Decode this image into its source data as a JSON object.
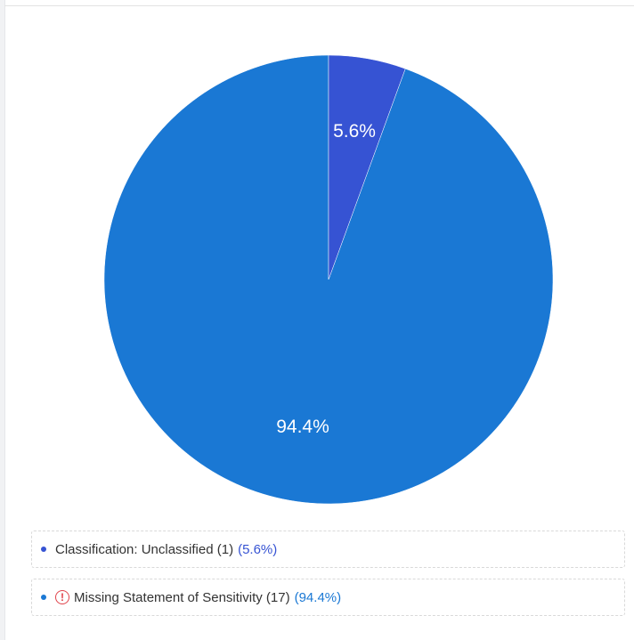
{
  "chart_data": {
    "type": "pie",
    "title": "",
    "categories": [
      "Classification: Unclassified",
      "Missing Statement of Sensitivity"
    ],
    "values": [
      1,
      17
    ],
    "percentages": [
      5.6,
      94.4
    ],
    "colors": [
      "#3653d3",
      "#1a78d4"
    ],
    "labels": [
      "5.6%",
      "94.4%"
    ],
    "legend_position": "bottom"
  },
  "slices": [
    {
      "label": "5.6%",
      "color": "#3653d3"
    },
    {
      "label": "94.4%",
      "color": "#1a78d4"
    }
  ],
  "legend": [
    {
      "name": "Classification: Unclassified (1)",
      "pct": "(5.6%)",
      "dot_color": "#3653d3",
      "pct_color": "#3653d3",
      "has_warning": false
    },
    {
      "name": "Missing Statement of Sensitivity (17)",
      "pct": "(94.4%)",
      "dot_color": "#1a78d4",
      "pct_color": "#1a78d4",
      "has_warning": true,
      "warning_glyph": "!"
    }
  ]
}
